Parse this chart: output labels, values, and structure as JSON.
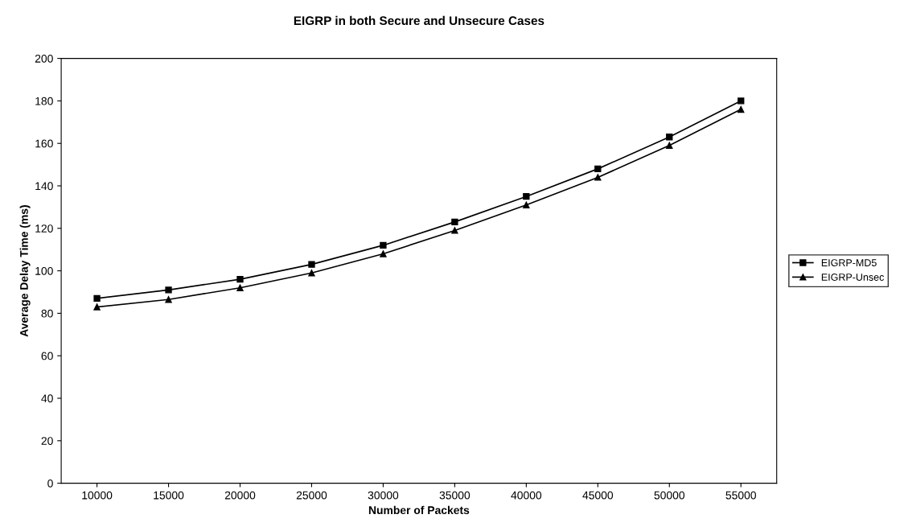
{
  "chart_data": {
    "type": "line",
    "title": "EIGRP in both Secure and Unsecure Cases",
    "xlabel": "Number of Packets",
    "ylabel": "Average Delay Time (ms)",
    "categories": [
      "10000",
      "15000",
      "20000",
      "25000",
      "30000",
      "35000",
      "40000",
      "45000",
      "50000",
      "55000"
    ],
    "series": [
      {
        "name": "EIGRP-MD5",
        "color": "#000000",
        "marker": "square",
        "values": [
          87,
          91,
          96,
          103,
          112,
          123,
          135,
          148,
          163,
          180
        ]
      },
      {
        "name": "EIGRP-Unsec",
        "color": "#000000",
        "marker": "triangle",
        "values": [
          83,
          86.5,
          92,
          99,
          108,
          119,
          131,
          144,
          159,
          176
        ]
      }
    ],
    "ylim": [
      0,
      200
    ],
    "yticks": [
      0,
      20,
      40,
      60,
      80,
      100,
      120,
      140,
      160,
      180,
      200
    ],
    "grid": false,
    "legend": "right",
    "line_style": "solid"
  }
}
